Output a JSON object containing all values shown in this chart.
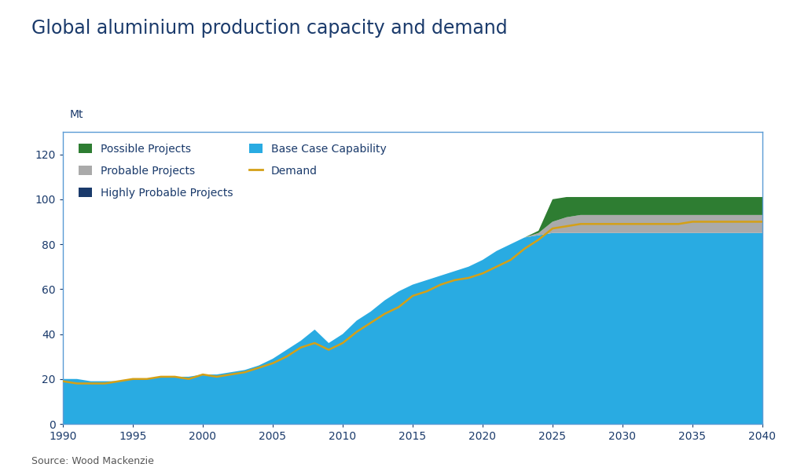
{
  "title": "Global aluminium production capacity and demand",
  "source": "Source: Wood Mackenzie",
  "ylabel": "Mt",
  "xlim": [
    1990,
    2040
  ],
  "ylim": [
    0,
    130
  ],
  "yticks": [
    0,
    20,
    40,
    60,
    80,
    100,
    120
  ],
  "xticks": [
    1990,
    1995,
    2000,
    2005,
    2010,
    2015,
    2020,
    2025,
    2030,
    2035,
    2040
  ],
  "colors": {
    "base_case": "#29ABE2",
    "highly_probable": "#1A3A6B",
    "probable": "#AAAAAA",
    "possible": "#2E7D32",
    "demand": "#D4A017",
    "background": "#FFFFFF",
    "chart_bg": "#FFFFFF",
    "border": "#5B9BD5",
    "title_color": "#1A3A6B",
    "axis_color": "#1A3A6B",
    "source_color": "#555555"
  },
  "years": [
    1990,
    1991,
    1992,
    1993,
    1994,
    1995,
    1996,
    1997,
    1998,
    1999,
    2000,
    2001,
    2002,
    2003,
    2004,
    2005,
    2006,
    2007,
    2008,
    2009,
    2010,
    2011,
    2012,
    2013,
    2014,
    2015,
    2016,
    2017,
    2018,
    2019,
    2020,
    2021,
    2022,
    2023,
    2024,
    2025,
    2026,
    2027,
    2028,
    2029,
    2030,
    2031,
    2032,
    2033,
    2034,
    2035,
    2036,
    2037,
    2038,
    2039,
    2040
  ],
  "base_case": [
    20,
    20,
    19,
    19,
    19,
    20,
    20,
    21,
    21,
    21,
    22,
    22,
    23,
    24,
    26,
    29,
    33,
    37,
    42,
    36,
    40,
    46,
    50,
    55,
    59,
    62,
    64,
    66,
    68,
    70,
    73,
    77,
    80,
    83,
    84,
    85,
    85,
    85,
    85,
    85,
    85,
    85,
    85,
    85,
    85,
    85,
    85,
    85,
    85,
    85,
    85
  ],
  "highly_probable": [
    0,
    0,
    0,
    0,
    0,
    0,
    0,
    0,
    0,
    0,
    0,
    0,
    0,
    0,
    0,
    0,
    0,
    0,
    0,
    0,
    0,
    0,
    0,
    0,
    0,
    0,
    0,
    0,
    0,
    0,
    0,
    0,
    0,
    0,
    0,
    0,
    0,
    0,
    0,
    0,
    0,
    0,
    0,
    0,
    0,
    0,
    0,
    0,
    0,
    0,
    0
  ],
  "probable": [
    0,
    0,
    0,
    0,
    0,
    0,
    0,
    0,
    0,
    0,
    0,
    0,
    0,
    0,
    0,
    0,
    0,
    0,
    0,
    0,
    0,
    0,
    0,
    0,
    0,
    0,
    0,
    0,
    0,
    0,
    0,
    0,
    0,
    0,
    1,
    5,
    7,
    8,
    8,
    8,
    8,
    8,
    8,
    8,
    8,
    8,
    8,
    8,
    8,
    8,
    8
  ],
  "possible": [
    0,
    0,
    0,
    0,
    0,
    0,
    0,
    0,
    0,
    0,
    0,
    0,
    0,
    0,
    0,
    0,
    0,
    0,
    0,
    0,
    0,
    0,
    0,
    0,
    0,
    0,
    0,
    0,
    0,
    0,
    0,
    0,
    0,
    0,
    1,
    10,
    9,
    8,
    8,
    8,
    8,
    8,
    8,
    8,
    8,
    8,
    8,
    8,
    8,
    8,
    8
  ],
  "demand": [
    19,
    18,
    18,
    18,
    19,
    20,
    20,
    21,
    21,
    20,
    22,
    21,
    22,
    23,
    25,
    27,
    30,
    34,
    36,
    33,
    36,
    41,
    45,
    49,
    52,
    57,
    59,
    62,
    64,
    65,
    67,
    70,
    73,
    78,
    82,
    87,
    88,
    89,
    89,
    89,
    89,
    89,
    89,
    89,
    89,
    90,
    90,
    90,
    90,
    90,
    90
  ]
}
